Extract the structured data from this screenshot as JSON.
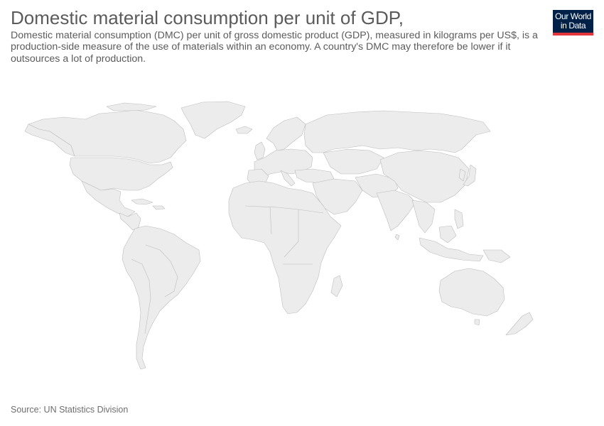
{
  "header": {
    "title": "Domestic material consumption per unit of GDP,",
    "subtitle": "Domestic material consumption (DMC) per unit of gross domestic product (GDP), measured in kilograms per US$, is a production-side measure of the use of materials within an economy. A country's DMC may therefore be lower if it outsources a lot of production."
  },
  "logo": {
    "line1": "Our World",
    "line2": "in Data",
    "background_color": "#002147",
    "accent_color": "#e2363b"
  },
  "map": {
    "fill_color": "#ececec",
    "border_color": "#bdbdbd"
  },
  "footer": {
    "source": "Source: UN Statistics Division"
  }
}
